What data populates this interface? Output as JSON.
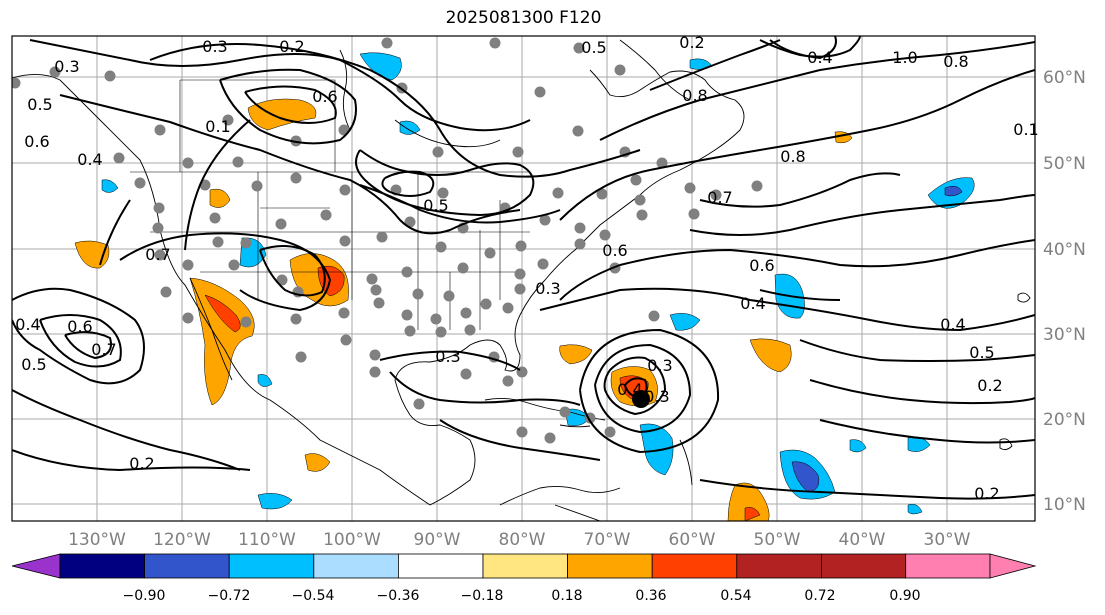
{
  "title": "2025081300 F120",
  "lon_labels": [
    "130°W",
    "120°W",
    "110°W",
    "100°W",
    "90°W",
    "80°W",
    "70°W",
    "60°W",
    "50°W",
    "40°W",
    "30°W"
  ],
  "lat_labels": [
    "60°N",
    "50°N",
    "40°N",
    "30°N",
    "20°N",
    "10°N"
  ],
  "colorbar": {
    "colors": [
      "#9933cc",
      "#000080",
      "#3355cc",
      "#00bfff",
      "#aaddff",
      "#ffffff",
      "#ffe680",
      "#ffa500",
      "#ff4000",
      "#b22222",
      "#ff80b0"
    ],
    "tick_labels": [
      "−0.90",
      "−0.72",
      "−0.54",
      "−0.36",
      "−0.18",
      "0.18",
      "0.36",
      "0.54",
      "0.72",
      "0.90"
    ]
  },
  "contour_labels": [
    "0.3",
    "0.2",
    "0.5",
    "0.3",
    "0.6",
    "0.1",
    "0.5",
    "0.4",
    "0.3",
    "0.4",
    "0.6",
    "0.7",
    "0.5",
    "0.6",
    "0.8",
    "0.8",
    "0.7",
    "0.6",
    "0.4",
    "0.5",
    "0.4",
    "0.5",
    "0.3",
    "0.2",
    "0.2",
    "0.2",
    "1.0",
    "0.8",
    "0.4",
    "0.7",
    "0.6",
    "0.4",
    "0.3",
    "0.3",
    "0.1",
    "0.2"
  ]
}
